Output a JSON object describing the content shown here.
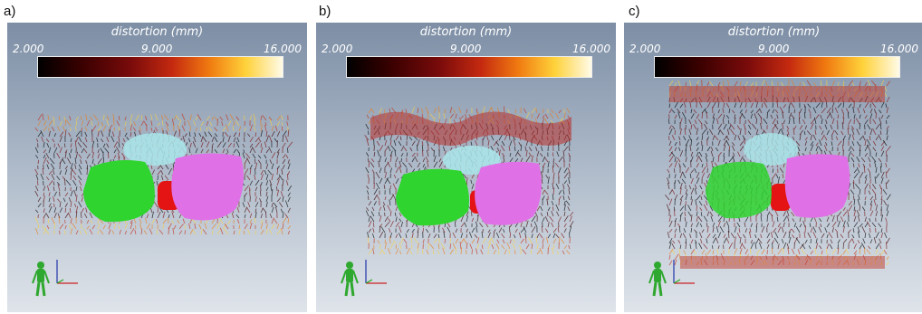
{
  "figure": {
    "panels": [
      {
        "label": "a)",
        "colorbar": {
          "title": "distortion (mm)",
          "min": "2.000",
          "mid": "9.000",
          "max": "16.000"
        }
      },
      {
        "label": "b)",
        "colorbar": {
          "title": "distortion (mm)",
          "min": "2.000",
          "mid": "9.000",
          "max": "16.000"
        }
      },
      {
        "label": "c)",
        "colorbar": {
          "title": "distortion (mm)",
          "min": "2.000",
          "mid": "9.000",
          "max": "16.000"
        }
      }
    ],
    "colormap": [
      "#000000",
      "#3a0000",
      "#7a0b0b",
      "#c52a10",
      "#f07a10",
      "#ffd23a",
      "#fffbe8"
    ],
    "structure_colors": {
      "left_organ": "#2fd42f",
      "right_organ": "#e070e6",
      "center_organ": "#e41414",
      "upper_organ": "#a9e6ea"
    },
    "orientation_icon": "human-figure-axes-icon"
  }
}
